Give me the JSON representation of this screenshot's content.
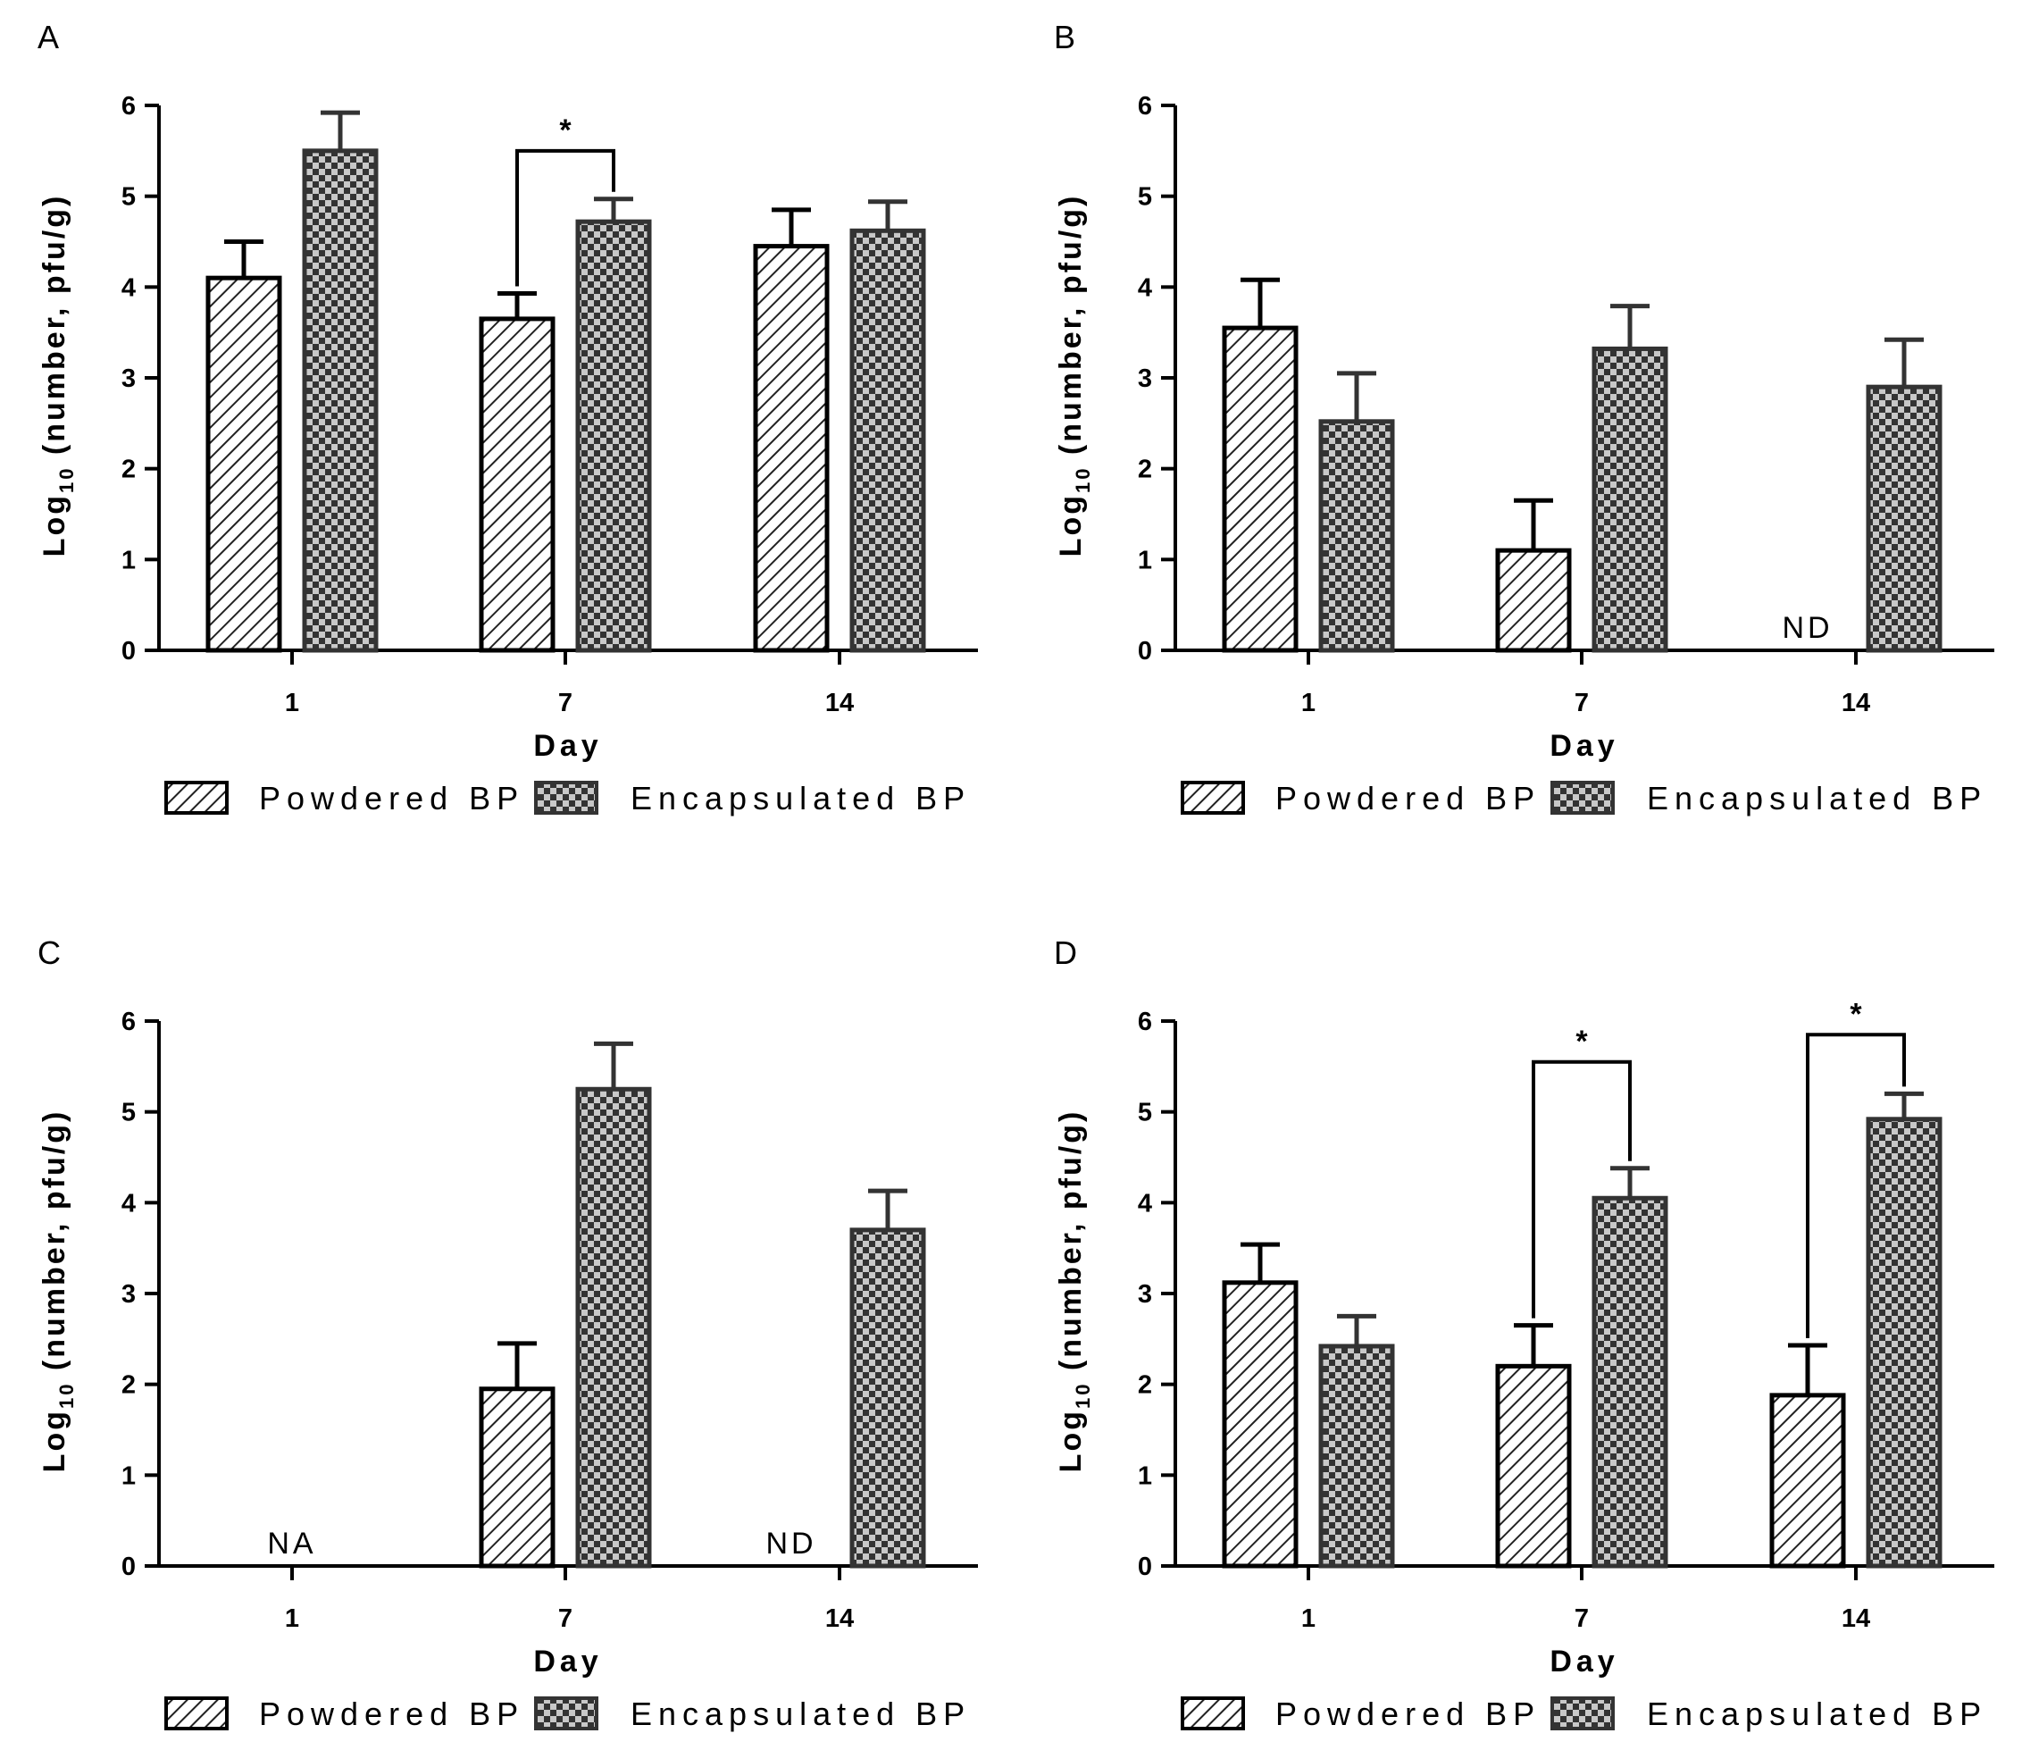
{
  "ylabel": {
    "prefix": "Log",
    "subscript": "10",
    "suffix": " (number, pfu/g)"
  },
  "legend": [
    {
      "label": "Powdered BP",
      "pattern": "hatch"
    },
    {
      "label": "Encapsulated BP",
      "pattern": "checker"
    }
  ],
  "colors": {
    "powdered_stroke": "#000000",
    "encapsulated_stroke": "#333333",
    "checker_dark": "#333333",
    "checker_light": "#c8c8c8"
  },
  "chart_data": [
    {
      "type": "bar",
      "panel": "A",
      "categories": [
        "1",
        "7",
        "14"
      ],
      "xlabel": "Day",
      "ylim": [
        0,
        6
      ],
      "yticks": [
        "0",
        "1",
        "2",
        "3",
        "4",
        "5",
        "6"
      ],
      "series": [
        {
          "name": "Powdered BP",
          "values": [
            4.1,
            3.65,
            4.45
          ],
          "errors": [
            0.4,
            0.28,
            0.4
          ]
        },
        {
          "name": "Encapsulated BP",
          "values": [
            5.5,
            4.72,
            4.62
          ],
          "errors": [
            0.42,
            0.25,
            0.32
          ]
        }
      ],
      "notes": [],
      "significance": [
        {
          "category": 1,
          "label": "*",
          "height": 5.5
        }
      ]
    },
    {
      "type": "bar",
      "panel": "B",
      "categories": [
        "1",
        "7",
        "14"
      ],
      "xlabel": "Day",
      "ylim": [
        0,
        6
      ],
      "yticks": [
        "0",
        "1",
        "2",
        "3",
        "4",
        "5",
        "6"
      ],
      "series": [
        {
          "name": "Powdered BP",
          "values": [
            3.55,
            1.1,
            null
          ],
          "errors": [
            0.53,
            0.55,
            null
          ]
        },
        {
          "name": "Encapsulated BP",
          "values": [
            2.52,
            3.32,
            2.9
          ],
          "errors": [
            0.53,
            0.47,
            0.52
          ]
        }
      ],
      "notes": [
        {
          "category": 2,
          "series": 0,
          "label": "ND"
        }
      ],
      "significance": []
    },
    {
      "type": "bar",
      "panel": "C",
      "categories": [
        "1",
        "7",
        "14"
      ],
      "xlabel": "Day",
      "ylim": [
        0,
        6
      ],
      "yticks": [
        "0",
        "1",
        "2",
        "3",
        "4",
        "5",
        "6"
      ],
      "series": [
        {
          "name": "Powdered BP",
          "values": [
            null,
            1.95,
            null
          ],
          "errors": [
            null,
            0.5,
            null
          ]
        },
        {
          "name": "Encapsulated BP",
          "values": [
            null,
            5.25,
            3.7
          ],
          "errors": [
            null,
            0.5,
            0.43
          ]
        }
      ],
      "notes": [
        {
          "category": 0,
          "series": "center",
          "label": "NA"
        },
        {
          "category": 2,
          "series": 0,
          "label": "ND"
        }
      ],
      "significance": []
    },
    {
      "type": "bar",
      "panel": "D",
      "categories": [
        "1",
        "7",
        "14"
      ],
      "xlabel": "Day",
      "ylim": [
        0,
        6
      ],
      "yticks": [
        "0",
        "1",
        "2",
        "3",
        "4",
        "5",
        "6"
      ],
      "series": [
        {
          "name": "Powdered BP",
          "values": [
            3.12,
            2.2,
            1.88
          ],
          "errors": [
            0.42,
            0.45,
            0.55
          ]
        },
        {
          "name": "Encapsulated BP",
          "values": [
            2.42,
            4.05,
            4.92
          ],
          "errors": [
            0.33,
            0.33,
            0.28
          ]
        }
      ],
      "notes": [],
      "significance": [
        {
          "category": 1,
          "label": "*",
          "height": 5.55
        },
        {
          "category": 2,
          "label": "*",
          "height": 5.85
        }
      ]
    }
  ]
}
